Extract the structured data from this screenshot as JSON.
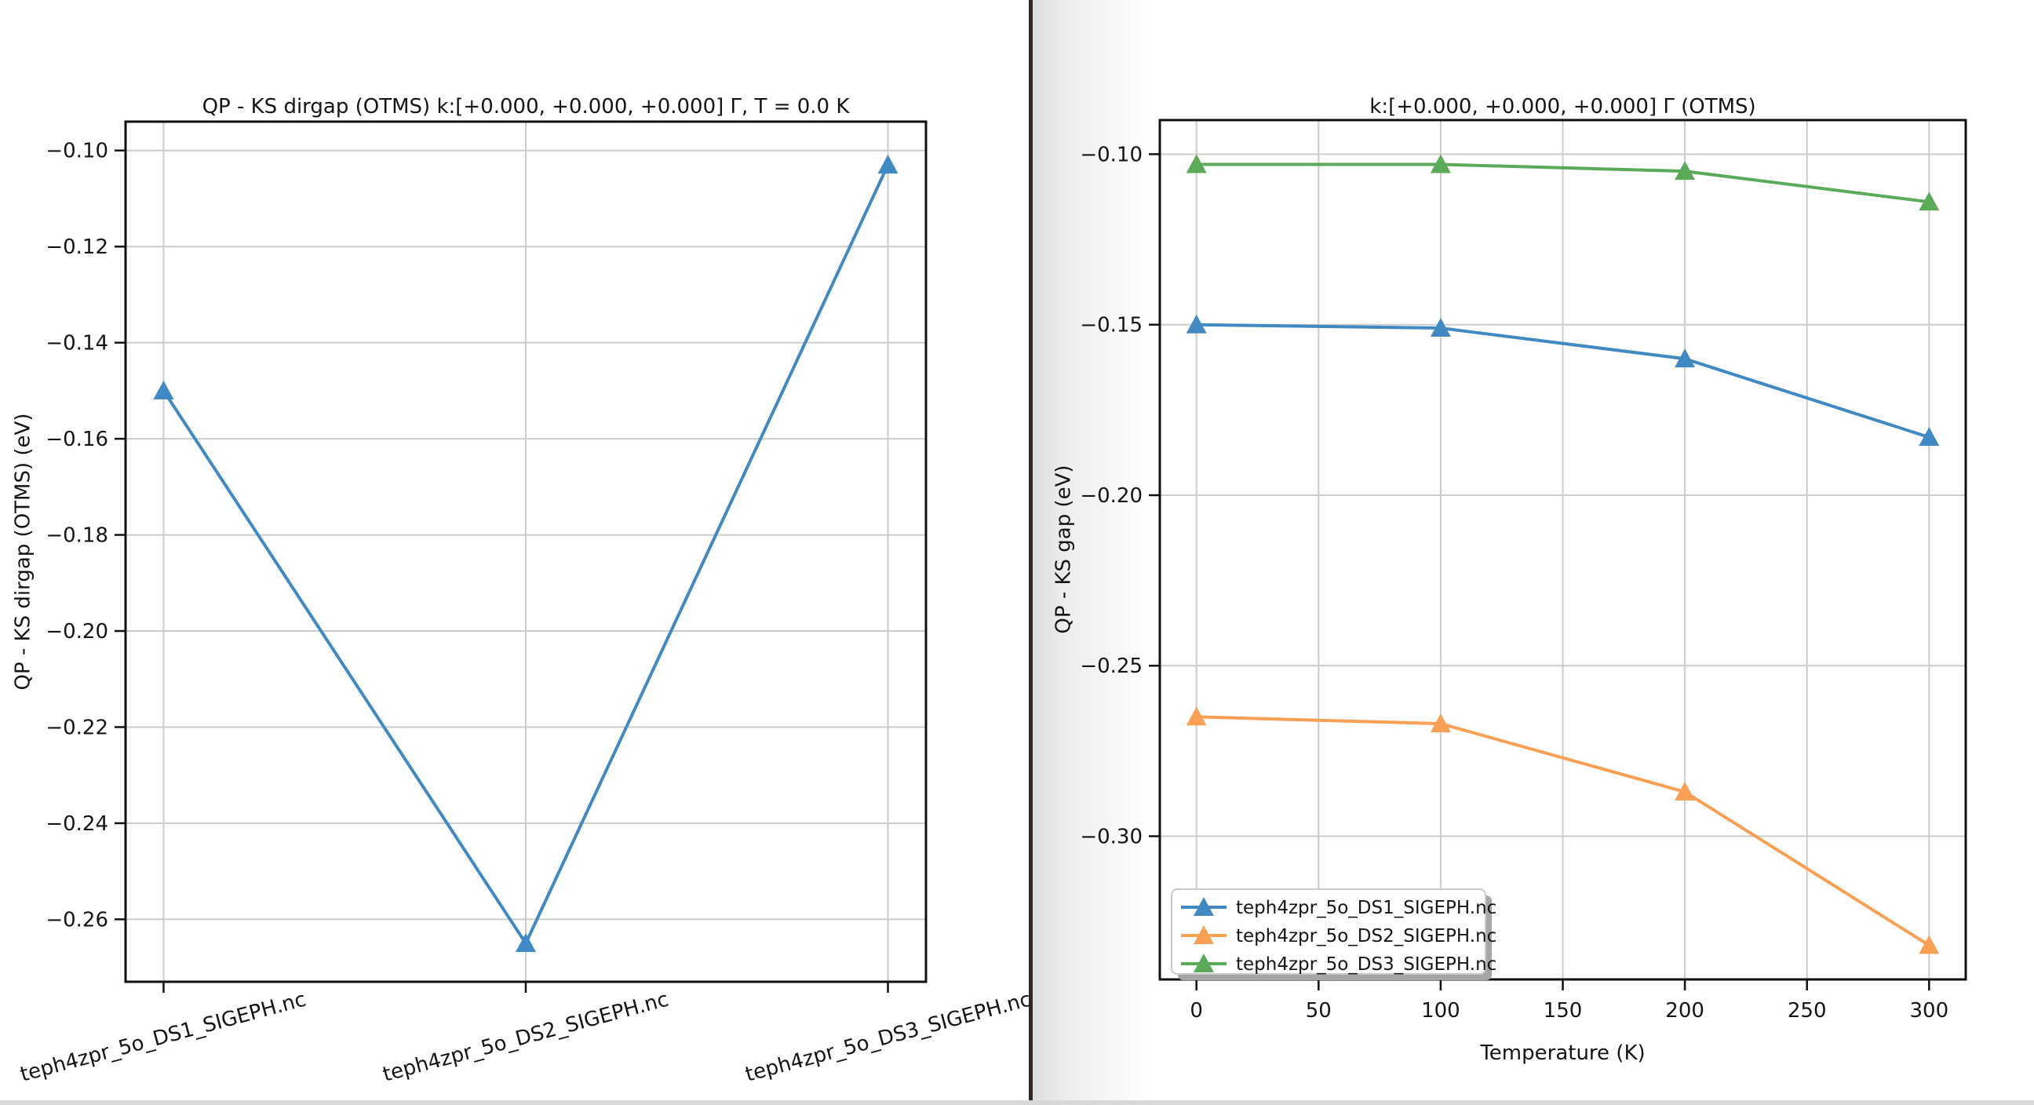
{
  "chart_data": [
    {
      "type": "line",
      "title": "QP - KS dirgap (OTMS) k:[+0.000, +0.000, +0.000] Γ, T = 0.0 K",
      "xlabel": "",
      "ylabel": "QP - KS dirgap (OTMS) (eV)",
      "categories": [
        "teph4zpr_5o_DS1_SIGEPH.nc",
        "teph4zpr_5o_DS2_SIGEPH.nc",
        "teph4zpr_5o_DS3_SIGEPH.nc"
      ],
      "series": [
        {
          "name": "",
          "color": "#4089c2",
          "values": [
            -0.15,
            -0.265,
            -0.103
          ]
        }
      ],
      "marker": "triangle-up",
      "grid": true,
      "xtick_rotation": 15,
      "yticks": [
        -0.1,
        -0.12,
        -0.14,
        -0.16,
        -0.18,
        -0.2,
        -0.22,
        -0.24,
        -0.26
      ],
      "ytick_decimals": 2,
      "ylim": [
        -0.273,
        -0.094
      ],
      "xlim": [
        -0.105,
        2.105
      ],
      "legend_visible": false
    },
    {
      "type": "line",
      "title": "k:[+0.000, +0.000, +0.000] Γ (OTMS)",
      "xlabel": "Temperature (K)",
      "ylabel": "QP - KS gap (eV)",
      "x": [
        0,
        100,
        200,
        300
      ],
      "xticks": [
        0,
        50,
        100,
        150,
        200,
        250,
        300
      ],
      "series": [
        {
          "name": "teph4zpr_5o_DS1_SIGEPH.nc",
          "color": "#4089c2",
          "values": [
            -0.15,
            -0.151,
            -0.16,
            -0.183
          ]
        },
        {
          "name": "teph4zpr_5o_DS2_SIGEPH.nc",
          "color": "#f9a054",
          "values": [
            -0.265,
            -0.267,
            -0.287,
            -0.332
          ]
        },
        {
          "name": "teph4zpr_5o_DS3_SIGEPH.nc",
          "color": "#5aaa5a",
          "values": [
            -0.103,
            -0.103,
            -0.105,
            -0.114
          ]
        }
      ],
      "marker": "triangle-up",
      "grid": true,
      "yticks": [
        -0.1,
        -0.15,
        -0.2,
        -0.25,
        -0.3
      ],
      "ytick_decimals": 2,
      "ylim": [
        -0.342,
        -0.09
      ],
      "xlim": [
        -15,
        315
      ],
      "legend": {
        "position": "lower left"
      }
    }
  ],
  "style_colors": {
    "grid": "#cccccc",
    "spine": "#111111",
    "text": "#151515",
    "legend_shadow": "#a6a6a6",
    "legend_border": "#c9c9c9"
  }
}
